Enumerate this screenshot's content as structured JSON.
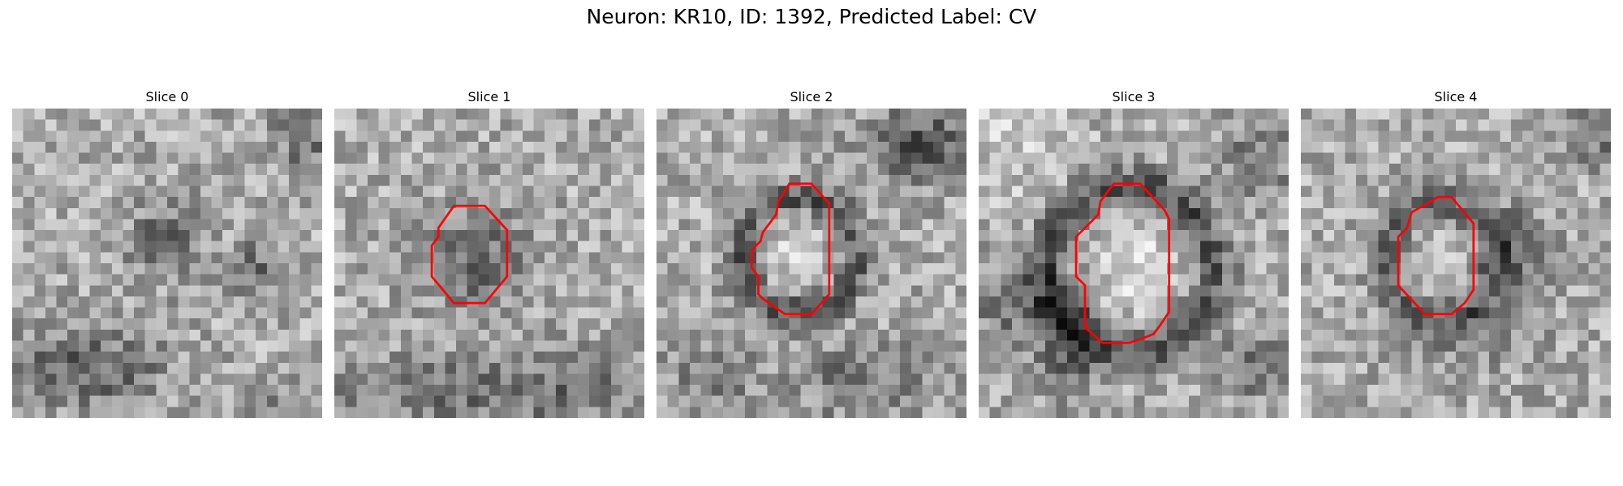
{
  "figure": {
    "title": "Neuron: KR10, ID: 1392, Predicted Label: CV"
  },
  "panels": [
    {
      "title": "Slice 0",
      "contour": []
    },
    {
      "title": "Slice 1",
      "contour": [
        [
          10.8,
          8.8
        ],
        [
          13.6,
          8.8
        ],
        [
          15.6,
          11.0
        ],
        [
          15.6,
          15.2
        ],
        [
          13.6,
          17.6
        ],
        [
          10.8,
          17.6
        ],
        [
          8.8,
          15.2
        ],
        [
          8.8,
          12.4
        ],
        [
          9.4,
          11.6
        ],
        [
          9.4,
          10.8
        ]
      ]
    },
    {
      "title": "Slice 2",
      "contour": [
        [
          12.0,
          6.8
        ],
        [
          14.0,
          6.8
        ],
        [
          15.6,
          8.6
        ],
        [
          15.6,
          16.8
        ],
        [
          14.0,
          18.6
        ],
        [
          11.6,
          18.6
        ],
        [
          9.6,
          17.2
        ],
        [
          9.2,
          16.8
        ],
        [
          9.2,
          15.2
        ],
        [
          8.6,
          14.4
        ],
        [
          8.6,
          12.8
        ],
        [
          9.4,
          12.0
        ],
        [
          9.6,
          11.2
        ],
        [
          10.8,
          9.6
        ],
        [
          11.0,
          8.4
        ]
      ]
    },
    {
      "title": "Slice 3",
      "contour": [
        [
          12.2,
          6.8
        ],
        [
          14.6,
          6.8
        ],
        [
          16.8,
          9.2
        ],
        [
          17.2,
          10.0
        ],
        [
          17.2,
          18.4
        ],
        [
          16.4,
          19.6
        ],
        [
          15.8,
          20.4
        ],
        [
          14.8,
          20.8
        ],
        [
          13.6,
          21.2
        ],
        [
          11.2,
          21.2
        ],
        [
          9.6,
          19.8
        ],
        [
          9.6,
          16.0
        ],
        [
          8.8,
          15.2
        ],
        [
          8.8,
          11.6
        ],
        [
          10.8,
          9.6
        ],
        [
          11.0,
          8.4
        ]
      ]
    },
    {
      "title": "Slice 4",
      "contour": [
        [
          12.4,
          8.0
        ],
        [
          13.6,
          8.0
        ],
        [
          15.6,
          10.4
        ],
        [
          15.6,
          16.4
        ],
        [
          14.8,
          17.6
        ],
        [
          13.6,
          18.6
        ],
        [
          11.2,
          18.6
        ],
        [
          8.8,
          16.0
        ],
        [
          8.8,
          11.6
        ],
        [
          9.6,
          10.8
        ],
        [
          10.0,
          9.4
        ]
      ]
    }
  ]
}
